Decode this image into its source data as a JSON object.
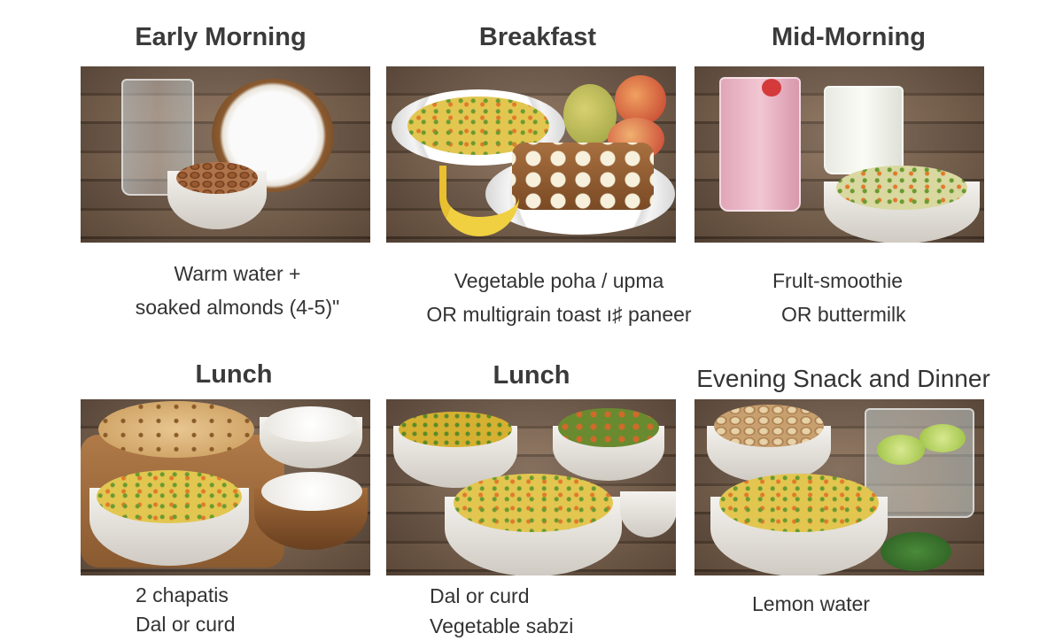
{
  "meals": [
    {
      "title": "Early Morning",
      "caption": [
        "Warm water +",
        "soaked almonds (4-5)\""
      ]
    },
    {
      "title": "Breakfast",
      "caption": [
        "Vegetable poha / upma",
        "OR multigrain toast ı♯ paneer"
      ]
    },
    {
      "title": "Mid-Morning",
      "caption": [
        "Frult-smoothie",
        "OR buttermilk"
      ]
    },
    {
      "title": "Lunch",
      "caption": [
        "2 chapatis",
        "Dal or curd"
      ]
    },
    {
      "title": "Lunch",
      "caption": [
        "Dal or curd",
        "Vegetable sabzi"
      ]
    },
    {
      "title": "Evening Snack and Dinner",
      "caption": [
        "Lemon water"
      ]
    }
  ],
  "colors": {
    "title": "#3a3a3a",
    "text": "#333333",
    "wood": "#6b5443"
  }
}
